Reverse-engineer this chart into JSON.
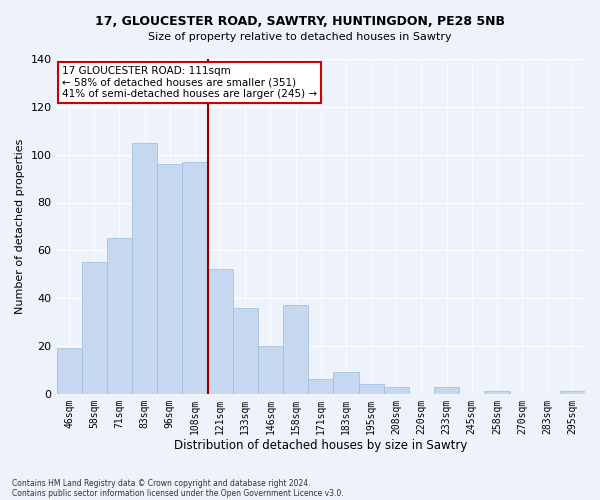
{
  "title1": "17, GLOUCESTER ROAD, SAWTRY, HUNTINGDON, PE28 5NB",
  "title2": "Size of property relative to detached houses in Sawtry",
  "xlabel": "Distribution of detached houses by size in Sawtry",
  "ylabel": "Number of detached properties",
  "bar_color": "#c5d8f0",
  "bar_edge_color": "#9bbcdd",
  "background_color": "#eef2fb",
  "categories": [
    "46sqm",
    "58sqm",
    "71sqm",
    "83sqm",
    "96sqm",
    "108sqm",
    "121sqm",
    "133sqm",
    "146sqm",
    "158sqm",
    "171sqm",
    "183sqm",
    "195sqm",
    "208sqm",
    "220sqm",
    "233sqm",
    "245sqm",
    "258sqm",
    "270sqm",
    "283sqm",
    "295sqm"
  ],
  "values": [
    19,
    55,
    65,
    105,
    96,
    97,
    52,
    36,
    20,
    37,
    6,
    9,
    4,
    3,
    0,
    3,
    0,
    1,
    0,
    0,
    1
  ],
  "vline_x": 5.5,
  "vline_color": "#990000",
  "annotation_title": "17 GLOUCESTER ROAD: 111sqm",
  "annotation_line1": "← 58% of detached houses are smaller (351)",
  "annotation_line2": "41% of semi-detached houses are larger (245) →",
  "annotation_box_color": "#ffffff",
  "annotation_box_edge": "#cc0000",
  "footer1": "Contains HM Land Registry data © Crown copyright and database right 2024.",
  "footer2": "Contains public sector information licensed under the Open Government Licence v3.0.",
  "ylim": [
    0,
    140
  ],
  "yticks": [
    0,
    20,
    40,
    60,
    80,
    100,
    120,
    140
  ]
}
